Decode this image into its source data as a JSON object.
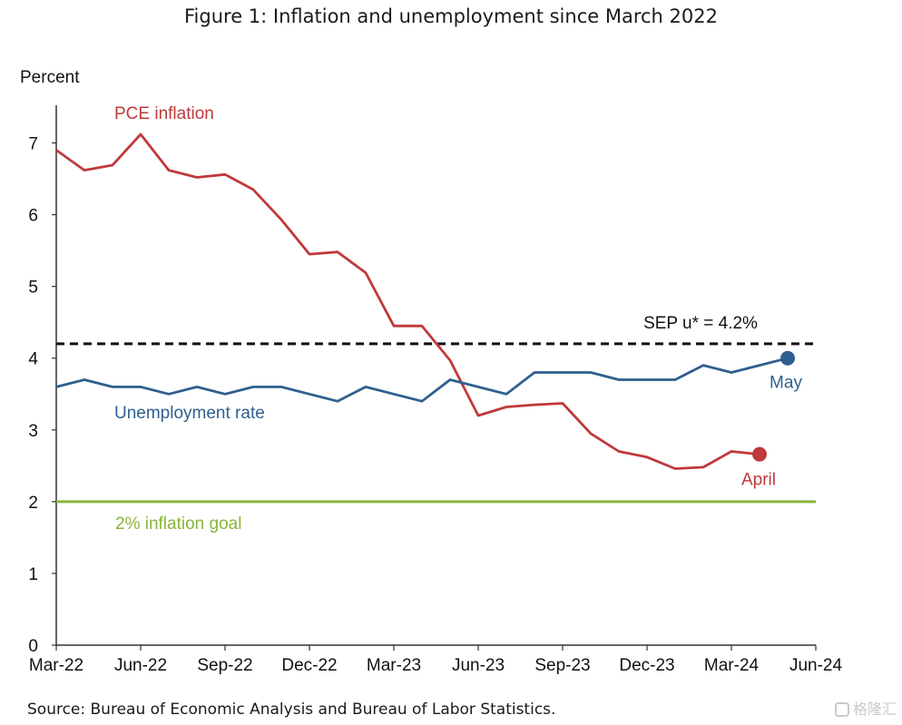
{
  "figure": {
    "title": "Figure 1: Inflation and unemployment since March 2022",
    "source": "Source: Bureau of Economic Analysis and Bureau of Labor Statistics.",
    "watermark": "格隆汇"
  },
  "chart_data": {
    "type": "line",
    "title": "Figure 1: Inflation and unemployment since March 2022",
    "ylabel": "Percent",
    "xlabel": "",
    "ylim": [
      0,
      7.5
    ],
    "yticks": [
      0,
      1,
      2,
      3,
      4,
      5,
      6,
      7
    ],
    "xticks": [
      "Mar-22",
      "Jun-22",
      "Sep-22",
      "Dec-22",
      "Mar-23",
      "Jun-23",
      "Sep-23",
      "Dec-23",
      "Mar-24",
      "Jun-24"
    ],
    "x_month_range": [
      0,
      27
    ],
    "grid": false,
    "series": [
      {
        "name": "PCE inflation",
        "color": "#c0393b",
        "end_label": "April",
        "x": [
          0,
          1,
          2,
          3,
          4,
          5,
          6,
          7,
          8,
          9,
          10,
          11,
          12,
          13,
          14,
          15,
          16,
          17,
          18,
          19,
          20,
          21,
          22,
          23,
          24,
          25
        ],
        "values": [
          6.9,
          6.62,
          6.69,
          7.12,
          6.62,
          6.52,
          6.56,
          6.35,
          5.93,
          5.45,
          5.48,
          5.19,
          4.45,
          4.45,
          3.97,
          3.2,
          3.32,
          3.35,
          3.37,
          2.95,
          2.7,
          2.62,
          2.46,
          2.48,
          2.7,
          2.66
        ]
      },
      {
        "name": "Unemployment rate",
        "color": "#2f5f8f",
        "end_label": "May",
        "x": [
          0,
          1,
          2,
          3,
          4,
          5,
          6,
          7,
          8,
          9,
          10,
          11,
          12,
          13,
          14,
          15,
          16,
          17,
          18,
          19,
          20,
          21,
          22,
          23,
          24,
          25,
          26
        ],
        "values": [
          3.6,
          3.7,
          3.6,
          3.6,
          3.5,
          3.6,
          3.5,
          3.6,
          3.6,
          3.5,
          3.4,
          3.6,
          3.5,
          3.4,
          3.7,
          3.6,
          3.5,
          3.8,
          3.8,
          3.8,
          3.7,
          3.7,
          3.7,
          3.9,
          3.8,
          3.9,
          4.0
        ]
      }
    ],
    "reference_lines": [
      {
        "name": "SEP u* = 4.2%",
        "value": 4.2,
        "color": "#111111",
        "style": "dashed"
      },
      {
        "name": "2% inflation goal",
        "value": 2.0,
        "color": "#8ab43a",
        "style": "solid"
      }
    ]
  }
}
